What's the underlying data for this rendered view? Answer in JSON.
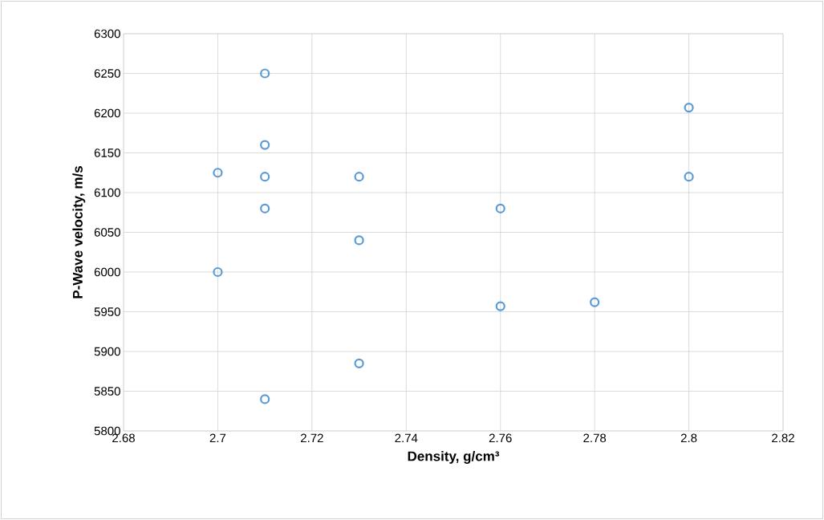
{
  "chart_data": {
    "type": "scatter",
    "xlabel": "Density, g/cm³",
    "ylabel": "P-Wave velocity, m/s",
    "x": [
      2.71,
      2.8,
      2.71,
      2.7,
      2.71,
      2.73,
      2.8,
      2.71,
      2.76,
      2.73,
      2.7,
      2.76,
      2.78,
      2.73,
      2.71
    ],
    "series": [
      {
        "color": "#5b9bd5",
        "values": [
          6250,
          6207,
          6160,
          6125,
          6120,
          6120,
          6120,
          6080,
          6080,
          6040,
          6000,
          5957,
          5962,
          5885,
          5840
        ]
      }
    ],
    "xlim": [
      2.68,
      2.82
    ],
    "ylim": [
      5800,
      6300
    ],
    "xticks": [
      2.68,
      2.7,
      2.72,
      2.74,
      2.76,
      2.78,
      2.8,
      2.82
    ],
    "yticks": [
      5800,
      5850,
      5900,
      5950,
      6000,
      6050,
      6100,
      6150,
      6200,
      6250,
      6300
    ],
    "grid": true,
    "marker": "circle"
  }
}
